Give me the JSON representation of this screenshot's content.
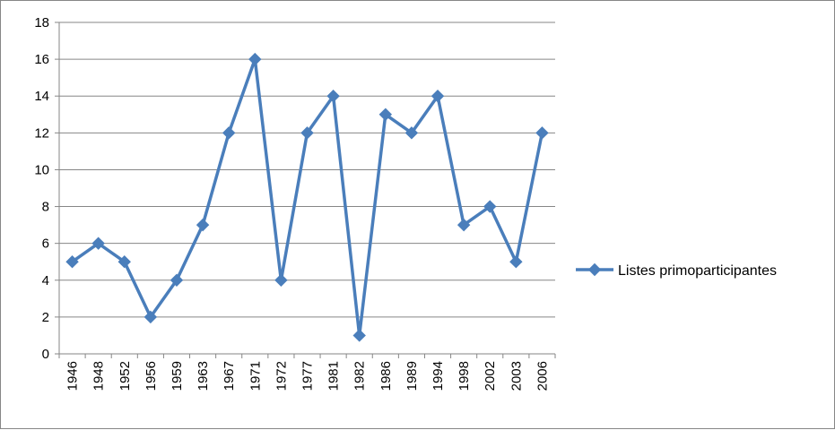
{
  "chart_data": {
    "type": "line",
    "categories": [
      "1946",
      "1948",
      "1952",
      "1956",
      "1959",
      "1963",
      "1967",
      "1971",
      "1972",
      "1977",
      "1981",
      "1982",
      "1986",
      "1989",
      "1994",
      "1998",
      "2002",
      "2003",
      "2006"
    ],
    "series": [
      {
        "name": "Listes primoparticipantes",
        "values": [
          5,
          6,
          5,
          2,
          4,
          7,
          12,
          16,
          4,
          12,
          14,
          1,
          13,
          12,
          14,
          7,
          8,
          5,
          12
        ],
        "color": "#4a7ebb",
        "marker": "diamond"
      }
    ],
    "y_ticks": [
      "0",
      "2",
      "4",
      "6",
      "8",
      "10",
      "12",
      "14",
      "16",
      "18"
    ],
    "ylim": [
      0,
      18
    ],
    "y_grid": true,
    "legend_position": "right"
  }
}
